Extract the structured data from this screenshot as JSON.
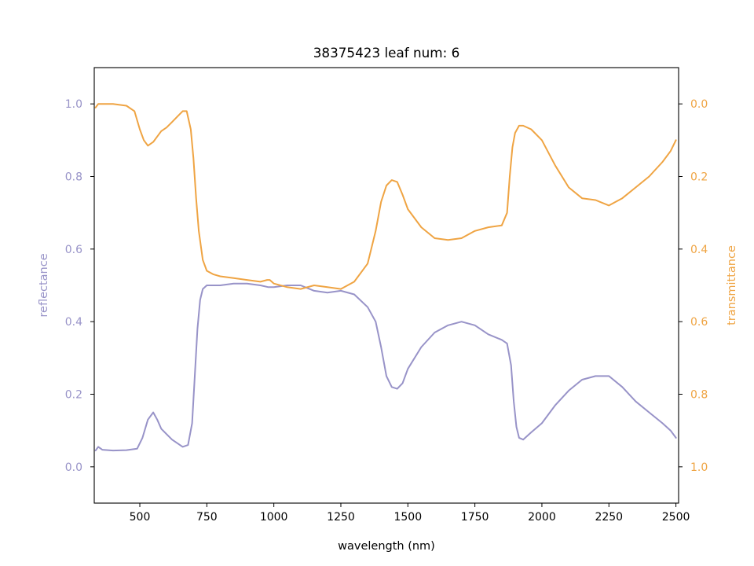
{
  "chart_data": {
    "type": "line",
    "title": "38375423 leaf num: 6",
    "xlabel": "wavelength (nm)",
    "ylabel_left": "reflectance",
    "ylabel_right": "transmittance",
    "xlim": [
      330,
      2510
    ],
    "ylim_left": [
      -0.1,
      1.1
    ],
    "ylim_right": [
      1.1,
      -0.1
    ],
    "right_axis_inverted": true,
    "grid": false,
    "x_ticks": [
      500,
      750,
      1000,
      1250,
      1500,
      1750,
      2000,
      2250,
      2500
    ],
    "x_tick_labels": [
      "500",
      "750",
      "1000",
      "1250",
      "1500",
      "1750",
      "2000",
      "2250",
      "2500"
    ],
    "y_left_ticks": [
      0.0,
      0.2,
      0.4,
      0.6,
      0.8,
      1.0
    ],
    "y_left_tick_labels": [
      "0.0",
      "0.2",
      "0.4",
      "0.6",
      "0.8",
      "1.0"
    ],
    "y_right_ticks": [
      0.0,
      0.2,
      0.4,
      0.6,
      0.8,
      1.0
    ],
    "y_right_tick_labels": [
      "0.0",
      "0.2",
      "0.4",
      "0.6",
      "0.8",
      "1.0"
    ],
    "colors": {
      "reflectance": "#9893c8",
      "transmittance": "#efa443"
    },
    "series": [
      {
        "axis": "left",
        "color": "#9893c8",
        "x": [
          335,
          345,
          360,
          400,
          450,
          490,
          510,
          530,
          550,
          565,
          580,
          600,
          620,
          640,
          660,
          680,
          695,
          705,
          715,
          725,
          735,
          750,
          775,
          800,
          850,
          900,
          950,
          980,
          1000,
          1050,
          1100,
          1150,
          1200,
          1250,
          1300,
          1350,
          1380,
          1400,
          1420,
          1440,
          1460,
          1480,
          1500,
          1550,
          1600,
          1650,
          1700,
          1750,
          1800,
          1850,
          1870,
          1885,
          1895,
          1905,
          1915,
          1930,
          1960,
          2000,
          2050,
          2100,
          2150,
          2200,
          2250,
          2300,
          2350,
          2400,
          2450,
          2480,
          2500
        ],
        "y": [
          0.045,
          0.055,
          0.047,
          0.045,
          0.046,
          0.05,
          0.08,
          0.13,
          0.15,
          0.13,
          0.105,
          0.09,
          0.075,
          0.065,
          0.055,
          0.06,
          0.12,
          0.25,
          0.38,
          0.46,
          0.49,
          0.5,
          0.5,
          0.5,
          0.505,
          0.505,
          0.5,
          0.495,
          0.495,
          0.5,
          0.5,
          0.485,
          0.48,
          0.485,
          0.475,
          0.44,
          0.4,
          0.33,
          0.25,
          0.22,
          0.215,
          0.23,
          0.27,
          0.33,
          0.37,
          0.39,
          0.4,
          0.39,
          0.365,
          0.35,
          0.34,
          0.28,
          0.18,
          0.11,
          0.08,
          0.075,
          0.095,
          0.12,
          0.17,
          0.21,
          0.24,
          0.25,
          0.25,
          0.22,
          0.18,
          0.15,
          0.12,
          0.1,
          0.08
        ]
      },
      {
        "axis": "right",
        "color": "#efa443",
        "x": [
          335,
          345,
          360,
          400,
          450,
          480,
          500,
          515,
          530,
          550,
          565,
          580,
          600,
          620,
          640,
          660,
          675,
          690,
          700,
          710,
          720,
          735,
          750,
          775,
          800,
          850,
          900,
          950,
          975,
          985,
          1000,
          1050,
          1100,
          1150,
          1200,
          1250,
          1300,
          1350,
          1380,
          1400,
          1420,
          1440,
          1460,
          1480,
          1500,
          1550,
          1600,
          1650,
          1700,
          1750,
          1800,
          1850,
          1870,
          1880,
          1890,
          1900,
          1915,
          1930,
          1960,
          2000,
          2050,
          2100,
          2150,
          2200,
          2250,
          2300,
          2350,
          2400,
          2450,
          2480,
          2500
        ],
        "y": [
          0.01,
          0.0,
          0.0,
          0.0,
          0.005,
          0.02,
          0.07,
          0.1,
          0.115,
          0.105,
          0.09,
          0.075,
          0.065,
          0.05,
          0.035,
          0.02,
          0.02,
          0.07,
          0.15,
          0.26,
          0.35,
          0.43,
          0.46,
          0.47,
          0.475,
          0.48,
          0.485,
          0.49,
          0.485,
          0.485,
          0.495,
          0.505,
          0.51,
          0.5,
          0.505,
          0.51,
          0.49,
          0.44,
          0.35,
          0.27,
          0.225,
          0.21,
          0.215,
          0.25,
          0.29,
          0.34,
          0.37,
          0.375,
          0.37,
          0.35,
          0.34,
          0.335,
          0.3,
          0.2,
          0.12,
          0.08,
          0.06,
          0.06,
          0.07,
          0.1,
          0.17,
          0.23,
          0.26,
          0.265,
          0.28,
          0.26,
          0.23,
          0.2,
          0.16,
          0.13,
          0.1
        ]
      }
    ]
  }
}
